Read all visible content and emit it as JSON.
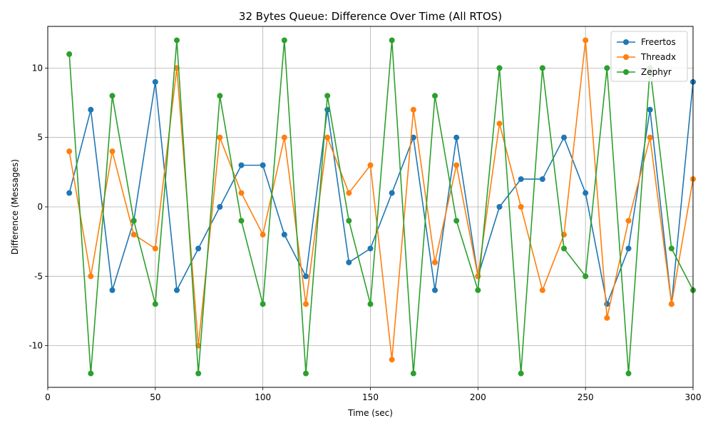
{
  "chart_data": {
    "type": "line",
    "title": "32 Bytes Queue: Difference Over Time (All RTOS)",
    "xlabel": "Time (sec)",
    "ylabel": "Difference (Messages)",
    "xlim": [
      0,
      300
    ],
    "ylim": [
      -13,
      13
    ],
    "xticks": [
      0,
      50,
      100,
      150,
      200,
      250,
      300
    ],
    "yticks": [
      -10,
      -5,
      0,
      5,
      10
    ],
    "grid": true,
    "legend_position": "top-right",
    "x": [
      10,
      20,
      30,
      40,
      50,
      60,
      70,
      80,
      90,
      100,
      110,
      120,
      130,
      140,
      150,
      160,
      170,
      180,
      190,
      200,
      210,
      220,
      230,
      240,
      250,
      260,
      270,
      280,
      290,
      300
    ],
    "series": [
      {
        "name": "Freertos",
        "color": "#1f77b4",
        "values": [
          1,
          7,
          -6,
          -1,
          9,
          -6,
          -3,
          0,
          3,
          3,
          -2,
          -5,
          7,
          -4,
          -3,
          1,
          5,
          -6,
          5,
          -5,
          0,
          2,
          2,
          5,
          1,
          -7,
          -3,
          7,
          -7,
          9
        ]
      },
      {
        "name": "Threadx",
        "color": "#ff7f0e",
        "values": [
          4,
          -5,
          4,
          -2,
          -3,
          10,
          -10,
          5,
          1,
          -2,
          5,
          -7,
          5,
          1,
          3,
          -11,
          7,
          -4,
          3,
          -5,
          6,
          0,
          -6,
          -2,
          12,
          -8,
          -1,
          5,
          -7,
          2
        ]
      },
      {
        "name": "Zephyr",
        "color": "#2ca02c",
        "values": [
          11,
          -12,
          8,
          -1,
          -7,
          12,
          -12,
          8,
          -1,
          -7,
          12,
          -12,
          8,
          -1,
          -7,
          12,
          -12,
          8,
          -1,
          -6,
          10,
          -12,
          10,
          -3,
          -5,
          10,
          -12,
          10,
          -3,
          -6
        ]
      }
    ]
  }
}
